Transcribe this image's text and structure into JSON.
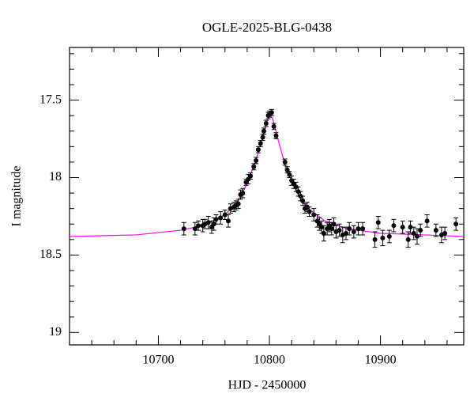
{
  "chart_data": {
    "type": "scatter",
    "title": "OGLE-2025-BLG-0438",
    "x_label": "HJD - 2450000",
    "y_label": "I magnitude",
    "xlim": [
      10620,
      10975
    ],
    "xticks": [
      10700,
      10800,
      10900
    ],
    "x_minor_ticks": [
      10640,
      10660,
      10680,
      10720,
      10740,
      10760,
      10780,
      10820,
      10840,
      10860,
      10880,
      10920,
      10940,
      10960
    ],
    "ylim": [
      17.16,
      19.08
    ],
    "y_inverted": true,
    "yticks": [
      17.5,
      18,
      18.5,
      19
    ],
    "y_minor_ticks": [
      17.2,
      17.3,
      17.4,
      17.6,
      17.7,
      17.8,
      17.9,
      18.1,
      18.2,
      18.3,
      18.4,
      18.6,
      18.7,
      18.8,
      18.9
    ],
    "points": {
      "color": "#000000",
      "x": [
        10723,
        10733,
        10736,
        10740,
        10742,
        10745,
        10748,
        10750,
        10752,
        10756,
        10760,
        10763,
        10765,
        10768,
        10770,
        10772,
        10774,
        10776,
        10779,
        10781,
        10783,
        10786,
        10788,
        10790,
        10792,
        10794,
        10795,
        10797,
        10799,
        10800,
        10802,
        10804,
        10806,
        10814,
        10816,
        10818,
        10820,
        10822,
        10824,
        10826,
        10828,
        10830,
        10832,
        10834,
        10836,
        10840,
        10843,
        10845,
        10847,
        10849,
        10852,
        10854,
        10856,
        10858,
        10860,
        10863,
        10866,
        10869,
        10872,
        10876,
        10880,
        10884,
        10895,
        10898,
        10902,
        10908,
        10912,
        10920,
        10925,
        10927,
        10930,
        10933,
        10936,
        10942,
        10950,
        10955,
        10958,
        10968
      ],
      "values": [
        18.33,
        18.33,
        18.31,
        18.31,
        18.3,
        18.29,
        18.32,
        18.3,
        18.27,
        18.26,
        18.24,
        18.28,
        18.2,
        18.19,
        18.18,
        18.17,
        18.11,
        18.1,
        18.03,
        18.01,
        17.99,
        17.93,
        17.89,
        17.82,
        17.78,
        17.74,
        17.7,
        17.65,
        17.6,
        17.59,
        17.58,
        17.67,
        17.73,
        17.9,
        17.95,
        17.98,
        18.02,
        18.04,
        18.06,
        18.09,
        18.12,
        18.15,
        18.2,
        18.19,
        18.22,
        18.24,
        18.28,
        18.3,
        18.32,
        18.36,
        18.33,
        18.31,
        18.33,
        18.3,
        18.35,
        18.34,
        18.37,
        18.36,
        18.33,
        18.35,
        18.33,
        18.33,
        18.4,
        18.29,
        18.39,
        18.38,
        18.31,
        18.32,
        18.4,
        18.32,
        18.36,
        18.38,
        18.34,
        18.28,
        18.34,
        18.37,
        18.36,
        18.3
      ],
      "errors": [
        0.04,
        0.04,
        0.03,
        0.04,
        0.03,
        0.04,
        0.04,
        0.04,
        0.03,
        0.04,
        0.03,
        0.04,
        0.03,
        0.03,
        0.03,
        0.03,
        0.03,
        0.03,
        0.02,
        0.03,
        0.02,
        0.02,
        0.02,
        0.02,
        0.02,
        0.02,
        0.02,
        0.02,
        0.02,
        0.02,
        0.02,
        0.02,
        0.02,
        0.02,
        0.02,
        0.02,
        0.03,
        0.03,
        0.03,
        0.03,
        0.03,
        0.03,
        0.03,
        0.03,
        0.03,
        0.04,
        0.04,
        0.04,
        0.04,
        0.05,
        0.04,
        0.04,
        0.04,
        0.04,
        0.04,
        0.04,
        0.05,
        0.04,
        0.04,
        0.04,
        0.04,
        0.04,
        0.05,
        0.04,
        0.05,
        0.04,
        0.04,
        0.04,
        0.05,
        0.04,
        0.04,
        0.05,
        0.04,
        0.04,
        0.04,
        0.05,
        0.04,
        0.04
      ]
    },
    "model": {
      "color": "#ff00ff",
      "x": [
        10620,
        10680,
        10720,
        10740,
        10760,
        10770,
        10780,
        10790,
        10795,
        10800,
        10803,
        10808,
        10815,
        10825,
        10835,
        10850,
        10870,
        10900,
        10940,
        10975
      ],
      "values": [
        18.38,
        18.37,
        18.34,
        18.31,
        18.24,
        18.17,
        18.04,
        17.84,
        17.71,
        17.59,
        17.62,
        17.76,
        17.94,
        18.1,
        18.2,
        18.28,
        18.33,
        18.36,
        18.37,
        18.38
      ]
    }
  }
}
